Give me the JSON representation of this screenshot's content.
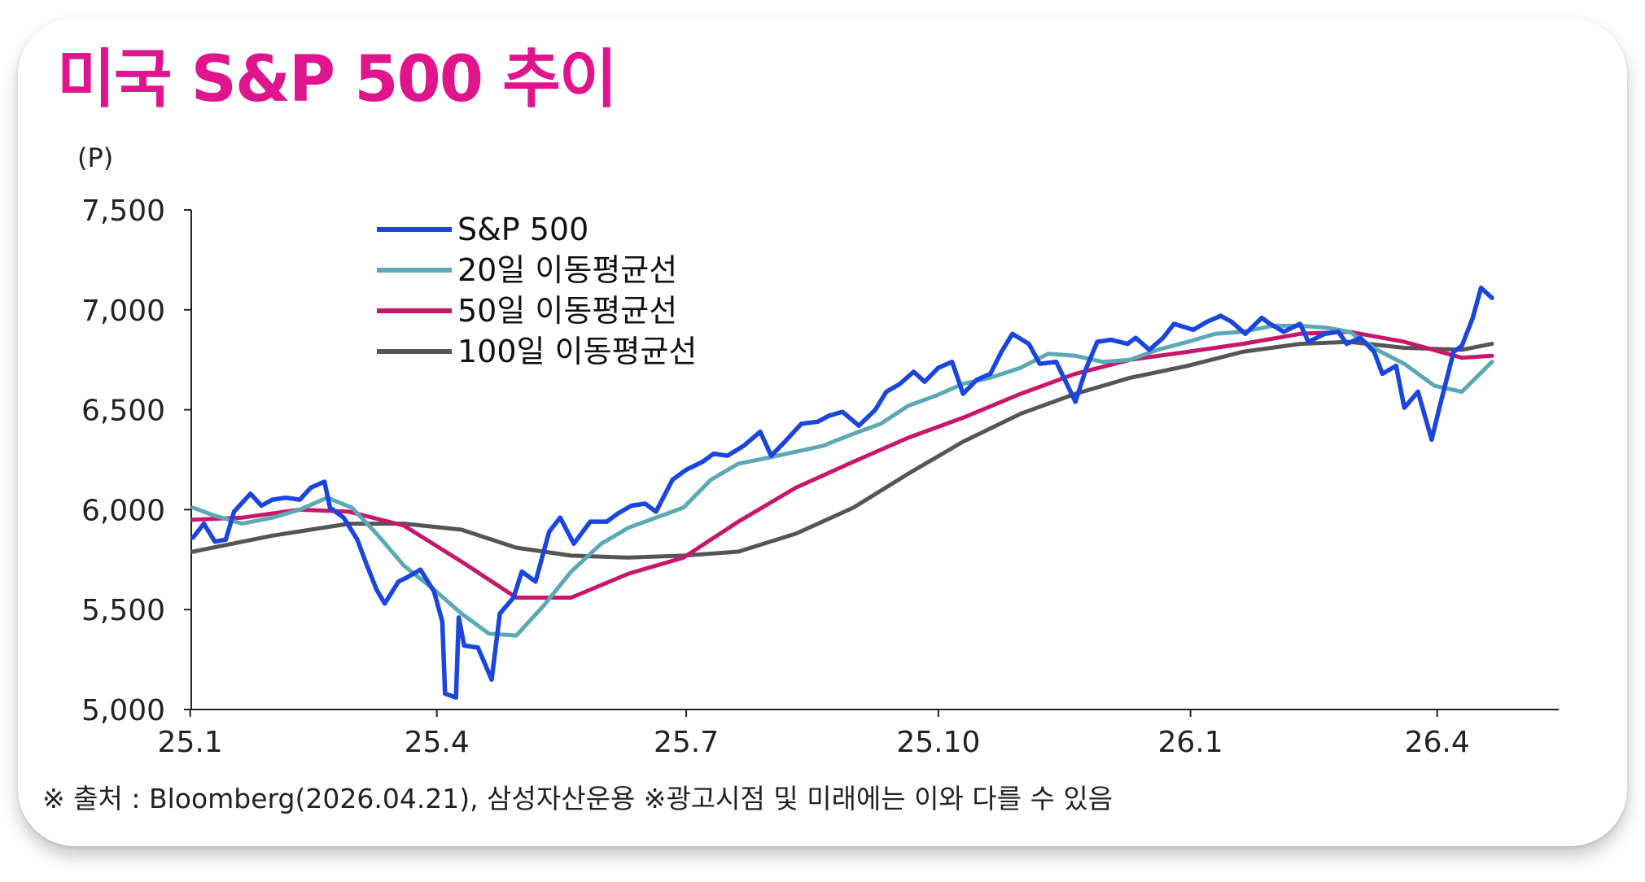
{
  "title": "미국 S&P 500 추이",
  "source_note": "※ 출처 : Bloomberg(2026.04.21), 삼성자산운용 ※광고시점 및 미래에는 이와 다를 수 있음",
  "colors": {
    "title": "#e0148c",
    "sp500": "#1a45e0",
    "ma20": "#5ba9b5",
    "ma50": "#c8166b",
    "ma100": "#555555",
    "axis": "#222222"
  },
  "chart_data": {
    "type": "line",
    "ylabel": "(P)",
    "ylim": [
      5000,
      7500
    ],
    "yticks": [
      5000,
      5500,
      6000,
      6500,
      7000,
      7500
    ],
    "ytick_labels": [
      "5,000",
      "5,500",
      "6,000",
      "6,500",
      "7,000",
      "7,500"
    ],
    "x_range": [
      "2025-01-02",
      "2026-04-21"
    ],
    "xtick_labels": [
      "25.1",
      "25.4",
      "25.7",
      "25.10",
      "26.1",
      "26.4"
    ],
    "xtick_dates": [
      "2025-01-01",
      "2025-04-01",
      "2025-07-01",
      "2025-10-01",
      "2026-01-01",
      "2026-04-01"
    ],
    "grid": false,
    "legend_position": "top-left",
    "series": [
      {
        "name": "S&P 500",
        "color": "#1a45e0",
        "x": [
          "2025-01-02",
          "2025-01-06",
          "2025-01-10",
          "2025-01-14",
          "2025-01-17",
          "2025-01-23",
          "2025-01-27",
          "2025-01-31",
          "2025-02-05",
          "2025-02-10",
          "2025-02-14",
          "2025-02-19",
          "2025-02-21",
          "2025-02-26",
          "2025-03-03",
          "2025-03-06",
          "2025-03-10",
          "2025-03-13",
          "2025-03-18",
          "2025-03-21",
          "2025-03-26",
          "2025-03-31",
          "2025-04-03",
          "2025-04-04",
          "2025-04-08",
          "2025-04-09",
          "2025-04-11",
          "2025-04-16",
          "2025-04-21",
          "2025-04-24",
          "2025-04-29",
          "2025-05-02",
          "2025-05-07",
          "2025-05-12",
          "2025-05-16",
          "2025-05-21",
          "2025-05-27",
          "2025-06-02",
          "2025-06-06",
          "2025-06-11",
          "2025-06-16",
          "2025-06-20",
          "2025-06-26",
          "2025-07-01",
          "2025-07-07",
          "2025-07-11",
          "2025-07-16",
          "2025-07-22",
          "2025-07-28",
          "2025-08-01",
          "2025-08-06",
          "2025-08-12",
          "2025-08-18",
          "2025-08-22",
          "2025-08-27",
          "2025-09-02",
          "2025-09-08",
          "2025-09-12",
          "2025-09-17",
          "2025-09-22",
          "2025-09-26",
          "2025-10-01",
          "2025-10-06",
          "2025-10-10",
          "2025-10-15",
          "2025-10-20",
          "2025-10-24",
          "2025-10-28",
          "2025-11-03",
          "2025-11-07",
          "2025-11-13",
          "2025-11-20",
          "2025-11-24",
          "2025-11-28",
          "2025-12-03",
          "2025-12-09",
          "2025-12-12",
          "2025-12-17",
          "2025-12-22",
          "2025-12-26",
          "2026-01-02",
          "2026-01-07",
          "2026-01-12",
          "2026-01-16",
          "2026-01-21",
          "2026-01-27",
          "2026-01-30",
          "2026-02-04",
          "2026-02-10",
          "2026-02-13",
          "2026-02-19",
          "2026-02-24",
          "2026-02-27",
          "2026-03-04",
          "2026-03-09",
          "2026-03-12",
          "2026-03-17",
          "2026-03-20",
          "2026-03-25",
          "2026-03-30",
          "2026-04-02",
          "2026-04-07",
          "2026-04-10",
          "2026-04-14",
          "2026-04-17",
          "2026-04-21"
        ],
        "values": [
          5860,
          5930,
          5840,
          5850,
          5990,
          6080,
          6020,
          6050,
          6060,
          6050,
          6110,
          6140,
          6010,
          5960,
          5850,
          5740,
          5600,
          5530,
          5640,
          5660,
          5700,
          5590,
          5440,
          5080,
          5060,
          5460,
          5320,
          5310,
          5150,
          5480,
          5560,
          5690,
          5640,
          5890,
          5960,
          5830,
          5940,
          5940,
          5980,
          6020,
          6030,
          5990,
          6150,
          6200,
          6240,
          6280,
          6270,
          6320,
          6390,
          6270,
          6340,
          6430,
          6440,
          6470,
          6490,
          6420,
          6500,
          6590,
          6630,
          6690,
          6640,
          6710,
          6740,
          6580,
          6650,
          6680,
          6790,
          6880,
          6830,
          6730,
          6740,
          6540,
          6710,
          6840,
          6850,
          6830,
          6860,
          6800,
          6860,
          6930,
          6900,
          6940,
          6970,
          6940,
          6880,
          6960,
          6930,
          6890,
          6930,
          6840,
          6880,
          6890,
          6830,
          6860,
          6790,
          6680,
          6720,
          6510,
          6590,
          6350,
          6520,
          6790,
          6820,
          6960,
          7110,
          7060
        ]
      },
      {
        "name": "20일 이동평균선",
        "color": "#5ba9b5",
        "x": [
          "2025-01-02",
          "2025-01-10",
          "2025-01-20",
          "2025-01-31",
          "2025-02-10",
          "2025-02-20",
          "2025-03-01",
          "2025-03-10",
          "2025-03-20",
          "2025-03-31",
          "2025-04-10",
          "2025-04-20",
          "2025-04-30",
          "2025-05-10",
          "2025-05-20",
          "2025-05-31",
          "2025-06-10",
          "2025-06-20",
          "2025-06-30",
          "2025-07-10",
          "2025-07-20",
          "2025-07-31",
          "2025-08-10",
          "2025-08-20",
          "2025-08-31",
          "2025-09-10",
          "2025-09-20",
          "2025-09-30",
          "2025-10-10",
          "2025-10-20",
          "2025-10-31",
          "2025-11-10",
          "2025-11-20",
          "2025-11-30",
          "2025-12-10",
          "2025-12-20",
          "2025-12-31",
          "2026-01-10",
          "2026-01-20",
          "2026-01-31",
          "2026-02-10",
          "2026-02-20",
          "2026-02-28",
          "2026-03-10",
          "2026-03-20",
          "2026-03-31",
          "2026-04-10",
          "2026-04-21"
        ],
        "values": [
          6010,
          5970,
          5930,
          5960,
          6000,
          6060,
          6010,
          5880,
          5720,
          5600,
          5480,
          5380,
          5370,
          5520,
          5690,
          5830,
          5910,
          5960,
          6010,
          6150,
          6230,
          6260,
          6290,
          6320,
          6380,
          6430,
          6520,
          6570,
          6630,
          6660,
          6710,
          6780,
          6770,
          6740,
          6750,
          6800,
          6840,
          6880,
          6890,
          6920,
          6920,
          6910,
          6890,
          6800,
          6730,
          6620,
          6590,
          6740
        ]
      },
      {
        "name": "50일 이동평균선",
        "color": "#c8166b",
        "x": [
          "2025-01-02",
          "2025-01-20",
          "2025-02-10",
          "2025-02-28",
          "2025-03-20",
          "2025-04-10",
          "2025-04-30",
          "2025-05-20",
          "2025-06-10",
          "2025-06-30",
          "2025-07-20",
          "2025-08-10",
          "2025-08-31",
          "2025-09-20",
          "2025-10-10",
          "2025-10-31",
          "2025-11-20",
          "2025-12-10",
          "2025-12-31",
          "2026-01-20",
          "2026-02-10",
          "2026-02-28",
          "2026-03-20",
          "2026-04-10",
          "2026-04-21"
        ],
        "values": [
          5950,
          5960,
          6000,
          5990,
          5920,
          5740,
          5560,
          5560,
          5680,
          5760,
          5940,
          6110,
          6240,
          6360,
          6460,
          6580,
          6680,
          6750,
          6790,
          6830,
          6880,
          6890,
          6840,
          6760,
          6770
        ]
      },
      {
        "name": "100일 이동평균선",
        "color": "#555555",
        "x": [
          "2025-01-02",
          "2025-01-31",
          "2025-02-28",
          "2025-03-20",
          "2025-04-10",
          "2025-04-30",
          "2025-05-20",
          "2025-06-10",
          "2025-06-30",
          "2025-07-20",
          "2025-08-10",
          "2025-08-31",
          "2025-09-20",
          "2025-10-10",
          "2025-10-31",
          "2025-11-20",
          "2025-12-10",
          "2025-12-31",
          "2026-01-20",
          "2026-02-10",
          "2026-02-28",
          "2026-03-20",
          "2026-04-10",
          "2026-04-21"
        ],
        "values": [
          5790,
          5870,
          5930,
          5930,
          5900,
          5810,
          5770,
          5760,
          5770,
          5790,
          5880,
          6010,
          6180,
          6340,
          6480,
          6580,
          6660,
          6720,
          6790,
          6830,
          6840,
          6810,
          6800,
          6830
        ]
      }
    ]
  }
}
